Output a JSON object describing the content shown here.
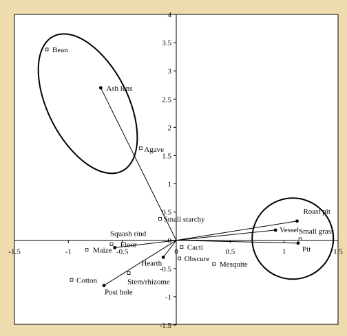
{
  "chart_data": {
    "type": "scatter",
    "title": "",
    "xlabel": "",
    "ylabel": "",
    "xlim": [
      -1.5,
      1.5
    ],
    "ylim": [
      -1.5,
      4
    ],
    "x_ticks": [
      "-1.5",
      "-1",
      "-0.5",
      "0",
      "0.5",
      "1",
      "1.5"
    ],
    "y_ticks": [
      "-1.5",
      "-1",
      "-0.5",
      "0",
      "0.5",
      "1",
      "1.5",
      "2",
      "2.5",
      "3",
      "3.5",
      "4"
    ],
    "grid": false,
    "legend": "none",
    "colors": {
      "background": "#efdcae",
      "plot_bg": "#ffffff",
      "ink": "#000000"
    },
    "taxa_points": [
      {
        "label": "Bean",
        "x": -1.2,
        "y": 3.38
      },
      {
        "label": "Agave",
        "x": -0.33,
        "y": 1.63
      },
      {
        "label": "Small starchy",
        "x": -0.15,
        "y": 0.38
      },
      {
        "label": "Squash rind",
        "x": -0.6,
        "y": -0.07
      },
      {
        "label": "Maize",
        "x": -0.83,
        "y": -0.17
      },
      {
        "label": "Cotton",
        "x": -0.97,
        "y": -0.7
      },
      {
        "label": "Stem/rhizome",
        "x": -0.44,
        "y": -0.58
      },
      {
        "label": "Obscure",
        "x": 0.03,
        "y": -0.32
      },
      {
        "label": "Cacti",
        "x": 0.05,
        "y": -0.12
      },
      {
        "label": "Mesquite",
        "x": 0.35,
        "y": -0.42
      },
      {
        "label": "Small grass",
        "x": 1.15,
        "y": 0.02
      }
    ],
    "feature_vectors": [
      {
        "label": "Ash lens",
        "x": -0.7,
        "y": 2.7
      },
      {
        "label": "Roast pit",
        "x": 1.12,
        "y": 0.34
      },
      {
        "label": "Vessel",
        "x": 0.92,
        "y": 0.18
      },
      {
        "label": "Pit",
        "x": 1.13,
        "y": -0.05
      },
      {
        "label": "Floor",
        "x": -0.57,
        "y": -0.13
      },
      {
        "label": "Hearth",
        "x": -0.12,
        "y": -0.3
      },
      {
        "label": "Post hole",
        "x": -0.67,
        "y": -0.8
      }
    ],
    "annotations": [
      {
        "shape": "ellipse",
        "note": "encircles Bean, Ash lens, Agave"
      },
      {
        "shape": "circle",
        "note": "encircles Roast pit, Vessel, Small grass, Pit"
      }
    ]
  }
}
